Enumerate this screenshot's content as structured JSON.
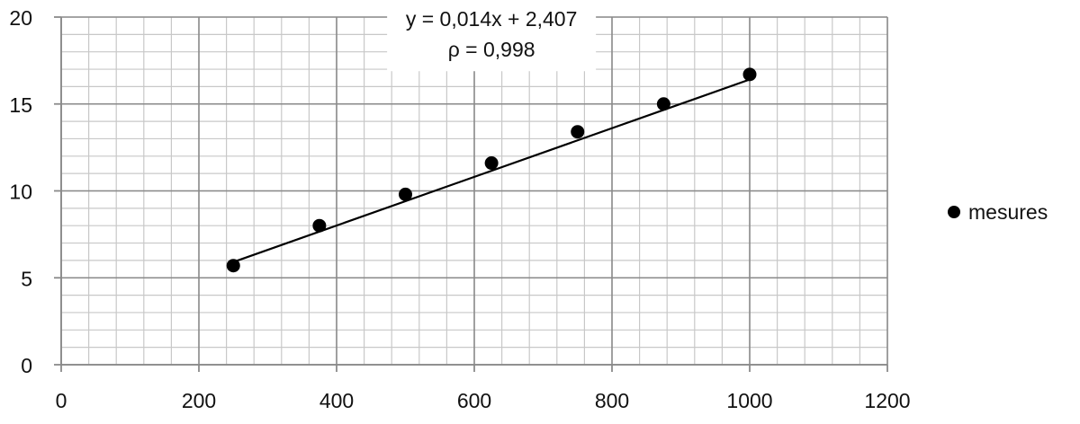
{
  "chart_data": {
    "type": "scatter",
    "xlim": [
      0,
      1200
    ],
    "ylim": [
      0,
      20
    ],
    "x_ticks": [
      0,
      200,
      400,
      600,
      800,
      1000,
      1200
    ],
    "y_ticks": [
      0,
      5,
      10,
      15,
      20
    ],
    "x_tick_labels": [
      "0",
      "200",
      "400",
      "600",
      "800",
      "1000",
      "1200"
    ],
    "y_tick_labels": [
      "0",
      "5",
      "10",
      "15",
      "20"
    ],
    "x_minor_step": 40,
    "y_minor_step": 1,
    "grid": true,
    "legend_position": "right",
    "series": [
      {
        "name": "mesures",
        "color": "#000000",
        "marker": "circle",
        "points": [
          {
            "x": 250,
            "y": 5.7
          },
          {
            "x": 375,
            "y": 8.0
          },
          {
            "x": 500,
            "y": 9.8
          },
          {
            "x": 625,
            "y": 11.6
          },
          {
            "x": 750,
            "y": 13.4
          },
          {
            "x": 875,
            "y": 15.0
          },
          {
            "x": 1000,
            "y": 16.7
          }
        ]
      }
    ],
    "trendline": {
      "slope": 0.014,
      "intercept": 2.407,
      "x_range": [
        250,
        1000
      ],
      "color": "#000000"
    },
    "annotation": {
      "lines": [
        "y = 0,014x + 2,407",
        "ρ = 0,998"
      ],
      "anchor_x": 625,
      "anchor_y": 17.3
    }
  }
}
